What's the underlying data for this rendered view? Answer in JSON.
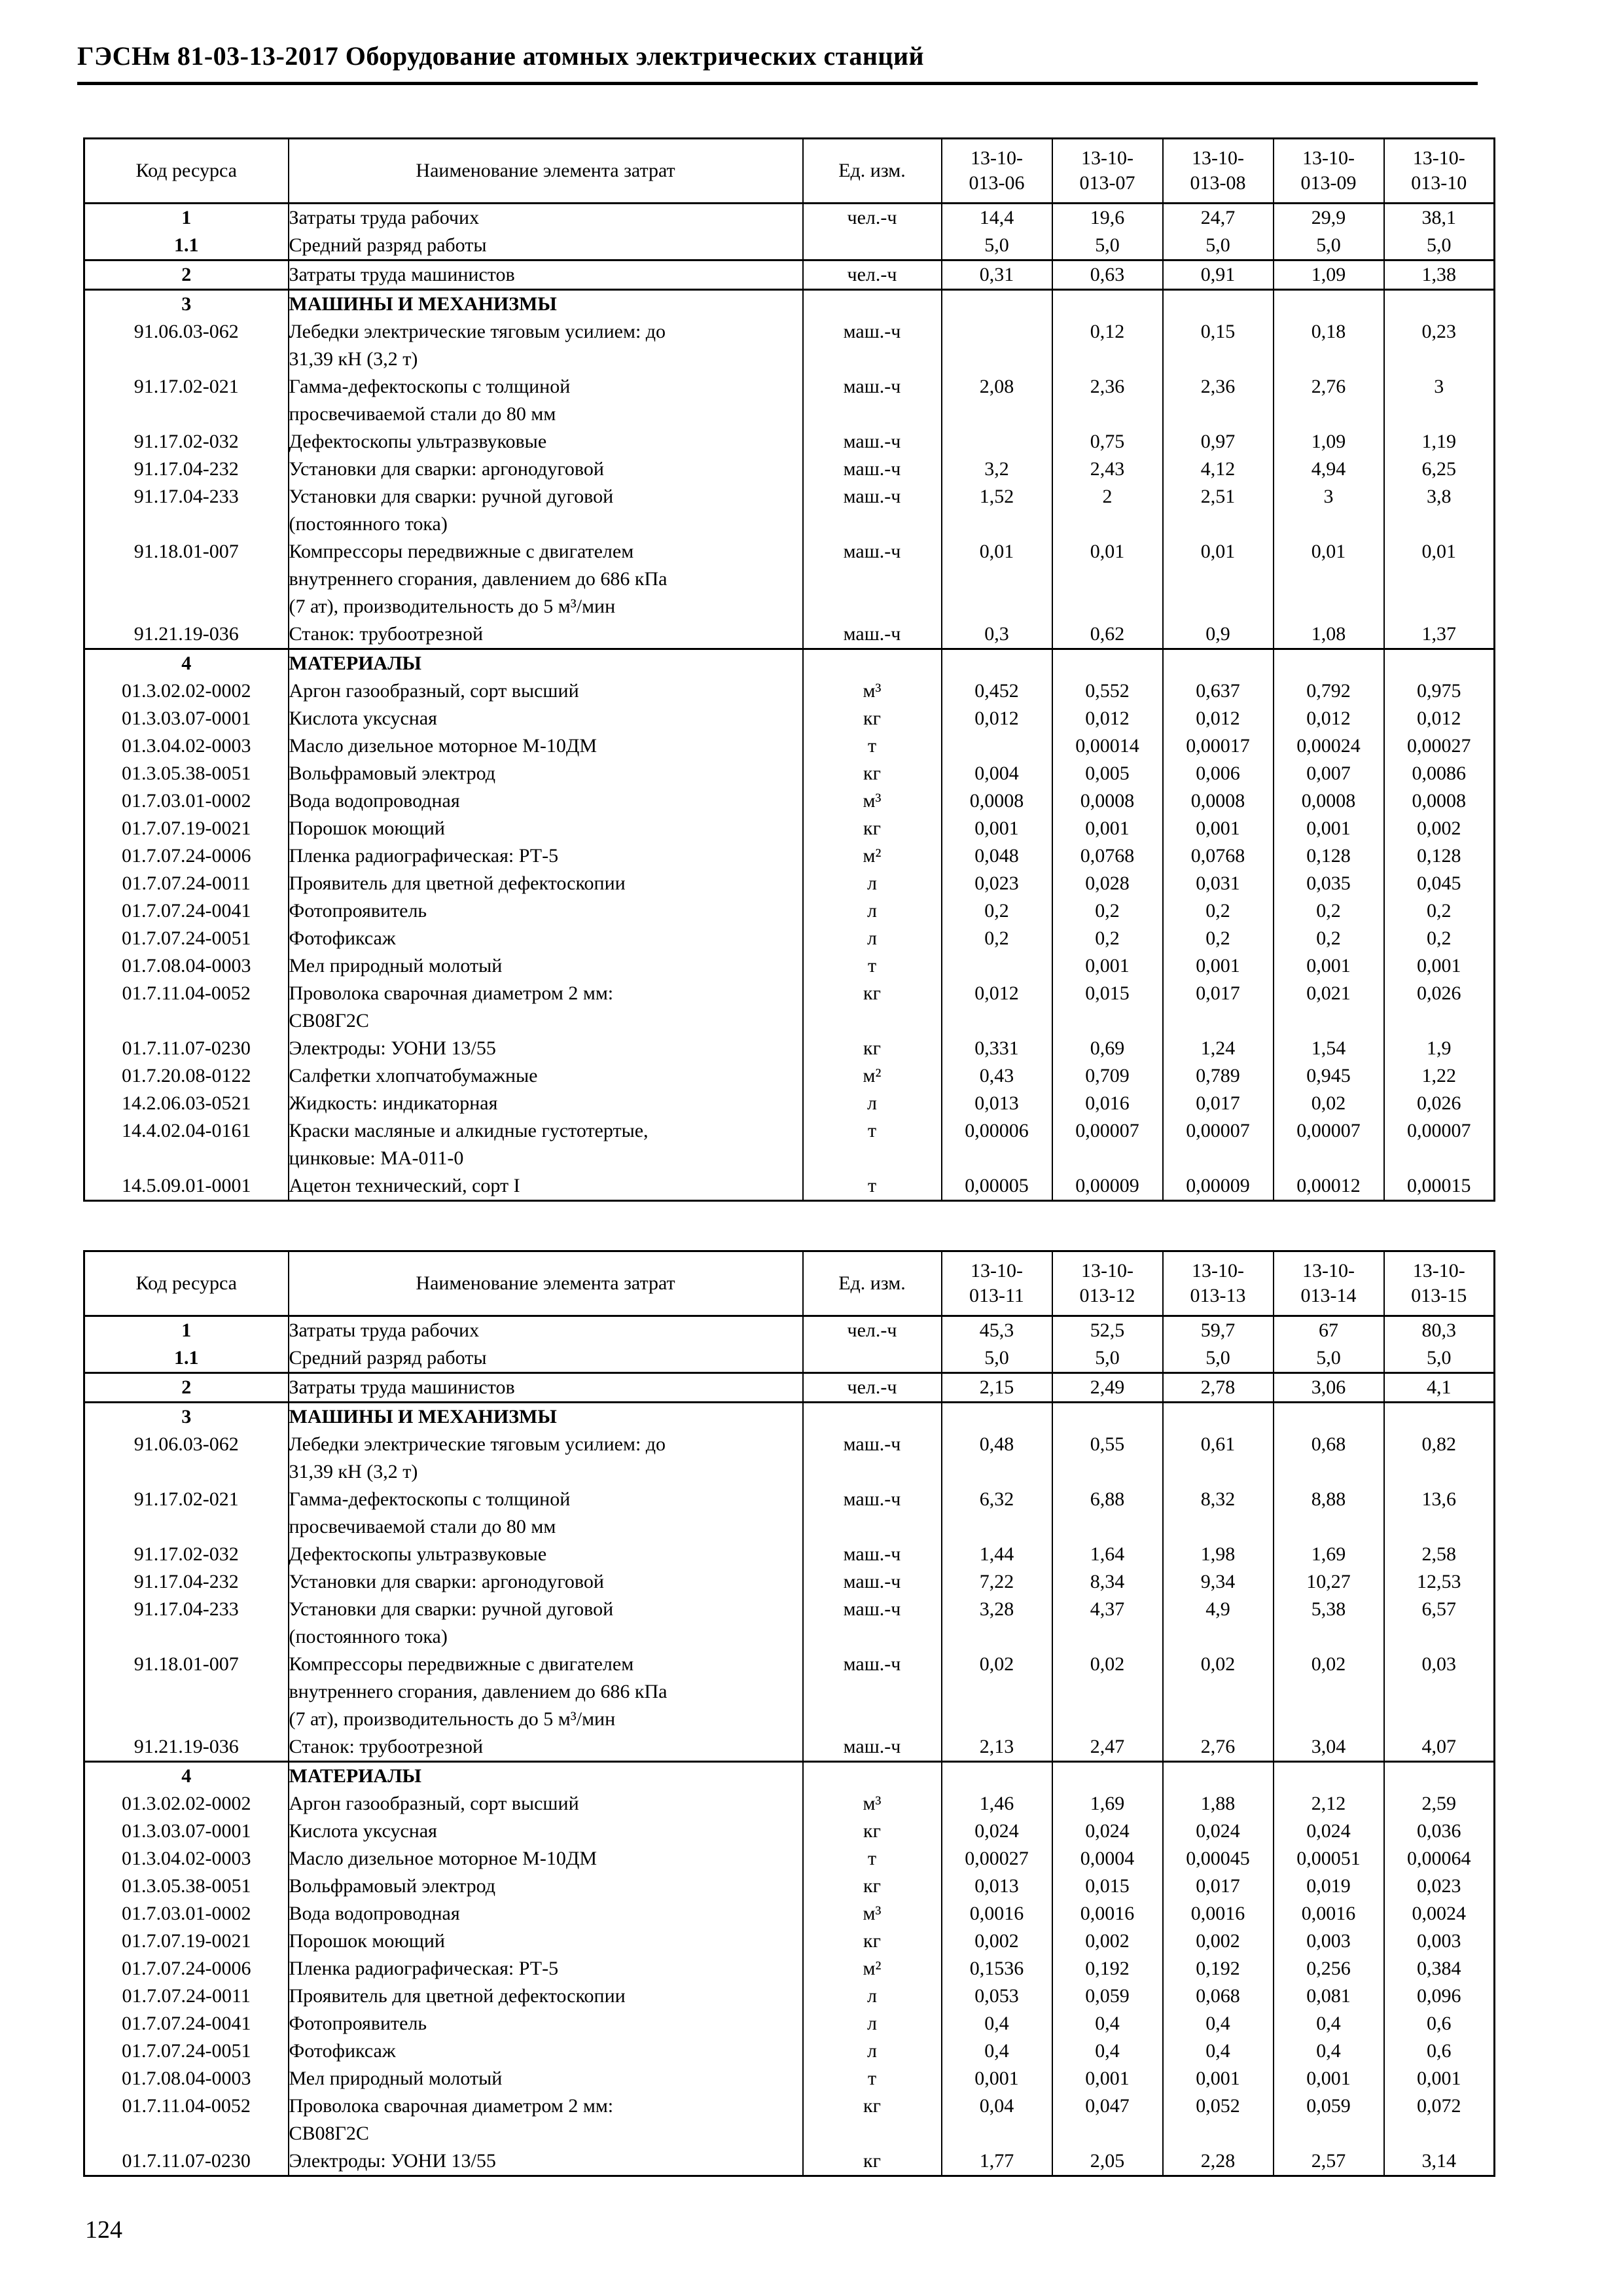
{
  "document": {
    "title": "ГЭСНм 81-03-13-2017 Оборудование атомных электрических станций",
    "page_number": "124"
  },
  "tables": [
    {
      "columns": [
        "Код ресурса",
        "Наименование элемента затрат",
        "Ед. изм.",
        "13-10-\n013-06",
        "13-10-\n013-07",
        "13-10-\n013-08",
        "13-10-\n013-09",
        "13-10-\n013-10"
      ],
      "rows": [
        {
          "code": "1",
          "code_bold": true,
          "name": "Затраты труда рабочих",
          "unit": "чел.-ч",
          "values": [
            "14,4",
            "19,6",
            "24,7",
            "29,9",
            "38,1"
          ]
        },
        {
          "code": "1.1",
          "code_bold": true,
          "name": "Средний разряд работы",
          "unit": "",
          "values": [
            "5,0",
            "5,0",
            "5,0",
            "5,0",
            "5,0"
          ]
        },
        {
          "code": "2",
          "code_bold": true,
          "sep": true,
          "name": "Затраты труда машинистов",
          "unit": "чел.-ч",
          "values": [
            "0,31",
            "0,63",
            "0,91",
            "1,09",
            "1,38"
          ]
        },
        {
          "code": "3",
          "code_bold": true,
          "sep": true,
          "name": "МАШИНЫ И МЕХАНИЗМЫ",
          "name_bold": true,
          "unit": "",
          "values": [
            "",
            "",
            "",
            "",
            ""
          ]
        },
        {
          "code": "91.06.03-062",
          "name": "Лебедки электрические тяговым усилием: до\n31,39 кН (3,2 т)",
          "unit": "маш.-ч",
          "values": [
            "",
            "0,12",
            "0,15",
            "0,18",
            "0,23"
          ]
        },
        {
          "code": "91.17.02-021",
          "name": "Гамма-дефектоскопы с толщиной\nпросвечиваемой стали до 80 мм",
          "unit": "маш.-ч",
          "values": [
            "2,08",
            "2,36",
            "2,36",
            "2,76",
            "3"
          ]
        },
        {
          "code": "91.17.02-032",
          "name": "Дефектоскопы ультразвуковые",
          "unit": "маш.-ч",
          "values": [
            "",
            "0,75",
            "0,97",
            "1,09",
            "1,19"
          ]
        },
        {
          "code": "91.17.04-232",
          "name": "Установки для сварки: аргонодуговой",
          "unit": "маш.-ч",
          "values": [
            "3,2",
            "2,43",
            "4,12",
            "4,94",
            "6,25"
          ]
        },
        {
          "code": "91.17.04-233",
          "name": "Установки для сварки: ручной дуговой\n(постоянного тока)",
          "unit": "маш.-ч",
          "values": [
            "1,52",
            "2",
            "2,51",
            "3",
            "3,8"
          ]
        },
        {
          "code": "91.18.01-007",
          "name": "Компрессоры передвижные с двигателем\nвнутреннего сгорания, давлением до 686 кПа\n(7 ат), производительность до 5 м³/мин",
          "unit": "маш.-ч",
          "values": [
            "0,01",
            "0,01",
            "0,01",
            "0,01",
            "0,01"
          ]
        },
        {
          "code": "91.21.19-036",
          "name": "Станок: трубоотрезной",
          "unit": "маш.-ч",
          "values": [
            "0,3",
            "0,62",
            "0,9",
            "1,08",
            "1,37"
          ]
        },
        {
          "code": "4",
          "code_bold": true,
          "sep": true,
          "name": "МАТЕРИАЛЫ",
          "name_bold": true,
          "unit": "",
          "values": [
            "",
            "",
            "",
            "",
            ""
          ]
        },
        {
          "code": "01.3.02.02-0002",
          "name": "Аргон газообразный, сорт высший",
          "unit": "м³",
          "values": [
            "0,452",
            "0,552",
            "0,637",
            "0,792",
            "0,975"
          ]
        },
        {
          "code": "01.3.03.07-0001",
          "name": "Кислота уксусная",
          "unit": "кг",
          "values": [
            "0,012",
            "0,012",
            "0,012",
            "0,012",
            "0,012"
          ]
        },
        {
          "code": "01.3.04.02-0003",
          "name": "Масло дизельное моторное М-10ДМ",
          "unit": "т",
          "values": [
            "",
            "0,00014",
            "0,00017",
            "0,00024",
            "0,00027"
          ]
        },
        {
          "code": "01.3.05.38-0051",
          "name": "Вольфрамовый электрод",
          "unit": "кг",
          "values": [
            "0,004",
            "0,005",
            "0,006",
            "0,007",
            "0,0086"
          ]
        },
        {
          "code": "01.7.03.01-0002",
          "name": "Вода водопроводная",
          "unit": "м³",
          "values": [
            "0,0008",
            "0,0008",
            "0,0008",
            "0,0008",
            "0,0008"
          ]
        },
        {
          "code": "01.7.07.19-0021",
          "name": "Порошок моющий",
          "unit": "кг",
          "values": [
            "0,001",
            "0,001",
            "0,001",
            "0,001",
            "0,002"
          ]
        },
        {
          "code": "01.7.07.24-0006",
          "name": "Пленка радиографическая: РТ-5",
          "unit": "м²",
          "values": [
            "0,048",
            "0,0768",
            "0,0768",
            "0,128",
            "0,128"
          ]
        },
        {
          "code": "01.7.07.24-0011",
          "name": "Проявитель для цветной дефектоскопии",
          "unit": "л",
          "values": [
            "0,023",
            "0,028",
            "0,031",
            "0,035",
            "0,045"
          ]
        },
        {
          "code": "01.7.07.24-0041",
          "name": "Фотопроявитель",
          "unit": "л",
          "values": [
            "0,2",
            "0,2",
            "0,2",
            "0,2",
            "0,2"
          ]
        },
        {
          "code": "01.7.07.24-0051",
          "name": "Фотофиксаж",
          "unit": "л",
          "values": [
            "0,2",
            "0,2",
            "0,2",
            "0,2",
            "0,2"
          ]
        },
        {
          "code": "01.7.08.04-0003",
          "name": "Мел природный молотый",
          "unit": "т",
          "values": [
            "",
            "0,001",
            "0,001",
            "0,001",
            "0,001"
          ]
        },
        {
          "code": "01.7.11.04-0052",
          "name": "Проволока сварочная диаметром 2 мм:\nСВ08Г2С",
          "unit": "кг",
          "values": [
            "0,012",
            "0,015",
            "0,017",
            "0,021",
            "0,026"
          ]
        },
        {
          "code": "01.7.11.07-0230",
          "name": "Электроды: УОНИ 13/55",
          "unit": "кг",
          "values": [
            "0,331",
            "0,69",
            "1,24",
            "1,54",
            "1,9"
          ]
        },
        {
          "code": "01.7.20.08-0122",
          "name": "Салфетки хлопчатобумажные",
          "unit": "м²",
          "values": [
            "0,43",
            "0,709",
            "0,789",
            "0,945",
            "1,22"
          ]
        },
        {
          "code": "14.2.06.03-0521",
          "name": "Жидкость: индикаторная",
          "unit": "л",
          "values": [
            "0,013",
            "0,016",
            "0,017",
            "0,02",
            "0,026"
          ]
        },
        {
          "code": "14.4.02.04-0161",
          "name": "Краски масляные и алкидные густотертые,\nцинковые: МА-011-0",
          "unit": "т",
          "values": [
            "0,00006",
            "0,00007",
            "0,00007",
            "0,00007",
            "0,00007"
          ]
        },
        {
          "code": "14.5.09.01-0001",
          "name": "Ацетон технический, сорт I",
          "unit": "т",
          "values": [
            "0,00005",
            "0,00009",
            "0,00009",
            "0,00012",
            "0,00015"
          ]
        }
      ]
    },
    {
      "columns": [
        "Код ресурса",
        "Наименование элемента затрат",
        "Ед. изм.",
        "13-10-\n013-11",
        "13-10-\n013-12",
        "13-10-\n013-13",
        "13-10-\n013-14",
        "13-10-\n013-15"
      ],
      "rows": [
        {
          "code": "1",
          "code_bold": true,
          "name": "Затраты труда рабочих",
          "unit": "чел.-ч",
          "values": [
            "45,3",
            "52,5",
            "59,7",
            "67",
            "80,3"
          ]
        },
        {
          "code": "1.1",
          "code_bold": true,
          "name": "Средний разряд работы",
          "unit": "",
          "values": [
            "5,0",
            "5,0",
            "5,0",
            "5,0",
            "5,0"
          ]
        },
        {
          "code": "2",
          "code_bold": true,
          "sep": true,
          "name": "Затраты труда машинистов",
          "unit": "чел.-ч",
          "values": [
            "2,15",
            "2,49",
            "2,78",
            "3,06",
            "4,1"
          ]
        },
        {
          "code": "3",
          "code_bold": true,
          "sep": true,
          "name": "МАШИНЫ И МЕХАНИЗМЫ",
          "name_bold": true,
          "unit": "",
          "values": [
            "",
            "",
            "",
            "",
            ""
          ]
        },
        {
          "code": "91.06.03-062",
          "name": "Лебедки электрические тяговым усилием: до\n31,39 кН (3,2 т)",
          "unit": "маш.-ч",
          "values": [
            "0,48",
            "0,55",
            "0,61",
            "0,68",
            "0,82"
          ]
        },
        {
          "code": "91.17.02-021",
          "name": "Гамма-дефектоскопы с толщиной\nпросвечиваемой стали до 80 мм",
          "unit": "маш.-ч",
          "values": [
            "6,32",
            "6,88",
            "8,32",
            "8,88",
            "13,6"
          ]
        },
        {
          "code": "91.17.02-032",
          "name": "Дефектоскопы ультразвуковые",
          "unit": "маш.-ч",
          "values": [
            "1,44",
            "1,64",
            "1,98",
            "1,69",
            "2,58"
          ]
        },
        {
          "code": "91.17.04-232",
          "name": "Установки для сварки: аргонодуговой",
          "unit": "маш.-ч",
          "values": [
            "7,22",
            "8,34",
            "9,34",
            "10,27",
            "12,53"
          ]
        },
        {
          "code": "91.17.04-233",
          "name": "Установки для сварки: ручной дуговой\n(постоянного тока)",
          "unit": "маш.-ч",
          "values": [
            "3,28",
            "4,37",
            "4,9",
            "5,38",
            "6,57"
          ]
        },
        {
          "code": "91.18.01-007",
          "name": "Компрессоры передвижные с двигателем\nвнутреннего сгорания, давлением до 686 кПа\n(7 ат), производительность до 5 м³/мин",
          "unit": "маш.-ч",
          "values": [
            "0,02",
            "0,02",
            "0,02",
            "0,02",
            "0,03"
          ]
        },
        {
          "code": "91.21.19-036",
          "name": "Станок: трубоотрезной",
          "unit": "маш.-ч",
          "values": [
            "2,13",
            "2,47",
            "2,76",
            "3,04",
            "4,07"
          ]
        },
        {
          "code": "4",
          "code_bold": true,
          "sep": true,
          "name": "МАТЕРИАЛЫ",
          "name_bold": true,
          "unit": "",
          "values": [
            "",
            "",
            "",
            "",
            ""
          ]
        },
        {
          "code": "01.3.02.02-0002",
          "name": "Аргон газообразный, сорт высший",
          "unit": "м³",
          "values": [
            "1,46",
            "1,69",
            "1,88",
            "2,12",
            "2,59"
          ]
        },
        {
          "code": "01.3.03.07-0001",
          "name": "Кислота уксусная",
          "unit": "кг",
          "values": [
            "0,024",
            "0,024",
            "0,024",
            "0,024",
            "0,036"
          ]
        },
        {
          "code": "01.3.04.02-0003",
          "name": "Масло дизельное моторное М-10ДМ",
          "unit": "т",
          "values": [
            "0,00027",
            "0,0004",
            "0,00045",
            "0,00051",
            "0,00064"
          ]
        },
        {
          "code": "01.3.05.38-0051",
          "name": "Вольфрамовый электрод",
          "unit": "кг",
          "values": [
            "0,013",
            "0,015",
            "0,017",
            "0,019",
            "0,023"
          ]
        },
        {
          "code": "01.7.03.01-0002",
          "name": "Вода водопроводная",
          "unit": "м³",
          "values": [
            "0,0016",
            "0,0016",
            "0,0016",
            "0,0016",
            "0,0024"
          ]
        },
        {
          "code": "01.7.07.19-0021",
          "name": "Порошок моющий",
          "unit": "кг",
          "values": [
            "0,002",
            "0,002",
            "0,002",
            "0,003",
            "0,003"
          ]
        },
        {
          "code": "01.7.07.24-0006",
          "name": "Пленка радиографическая: РТ-5",
          "unit": "м²",
          "values": [
            "0,1536",
            "0,192",
            "0,192",
            "0,256",
            "0,384"
          ]
        },
        {
          "code": "01.7.07.24-0011",
          "name": "Проявитель для цветной дефектоскопии",
          "unit": "л",
          "values": [
            "0,053",
            "0,059",
            "0,068",
            "0,081",
            "0,096"
          ]
        },
        {
          "code": "01.7.07.24-0041",
          "name": "Фотопроявитель",
          "unit": "л",
          "values": [
            "0,4",
            "0,4",
            "0,4",
            "0,4",
            "0,6"
          ]
        },
        {
          "code": "01.7.07.24-0051",
          "name": "Фотофиксаж",
          "unit": "л",
          "values": [
            "0,4",
            "0,4",
            "0,4",
            "0,4",
            "0,6"
          ]
        },
        {
          "code": "01.7.08.04-0003",
          "name": "Мел природный молотый",
          "unit": "т",
          "values": [
            "0,001",
            "0,001",
            "0,001",
            "0,001",
            "0,001"
          ]
        },
        {
          "code": "01.7.11.04-0052",
          "name": "Проволока сварочная диаметром 2 мм:\nСВ08Г2С",
          "unit": "кг",
          "values": [
            "0,04",
            "0,047",
            "0,052",
            "0,059",
            "0,072"
          ]
        },
        {
          "code": "01.7.11.07-0230",
          "name": "Электроды: УОНИ 13/55",
          "unit": "кг",
          "values": [
            "1,77",
            "2,05",
            "2,28",
            "2,57",
            "3,14"
          ]
        }
      ]
    }
  ]
}
